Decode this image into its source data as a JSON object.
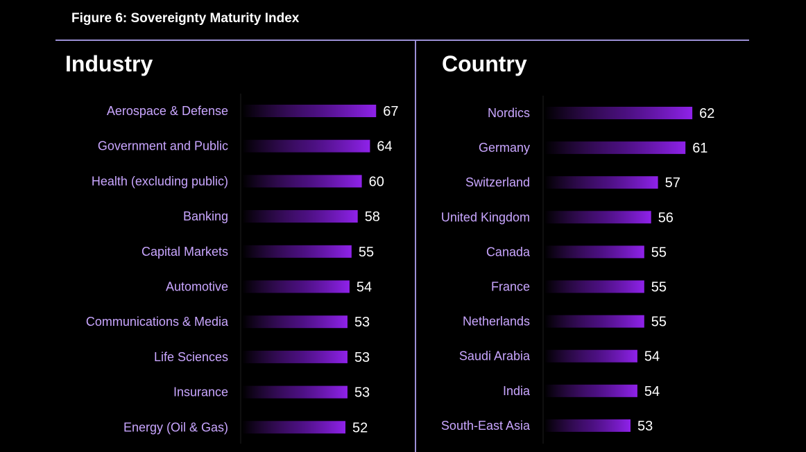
{
  "figure_title": "Figure 6: Sovereignty Maturity Index",
  "colors": {
    "background": "#000000",
    "bar": "#8a1fe0",
    "label": "#c9a6ff",
    "rule": "#9b8fd6"
  },
  "chart_data": [
    {
      "type": "bar",
      "orientation": "horizontal",
      "title": "Industry",
      "categories": [
        "Aerospace & Defense",
        "Government and Public",
        "Health (excluding public)",
        "Banking",
        "Capital Markets",
        "Automotive",
        "Communications & Media",
        "Life Sciences",
        "Insurance",
        "Energy (Oil & Gas)"
      ],
      "values": [
        67,
        64,
        60,
        58,
        55,
        54,
        53,
        53,
        53,
        52
      ],
      "xlim": [
        0,
        67
      ]
    },
    {
      "type": "bar",
      "orientation": "horizontal",
      "title": "Country",
      "categories": [
        "Nordics",
        "Germany",
        "Switzerland",
        "United Kingdom",
        "Canada",
        "France",
        "Netherlands",
        "Saudi Arabia",
        "India",
        "South-East Asia"
      ],
      "values": [
        62,
        61,
        57,
        56,
        55,
        55,
        55,
        54,
        54,
        53
      ],
      "xlim": [
        0,
        67
      ]
    }
  ]
}
